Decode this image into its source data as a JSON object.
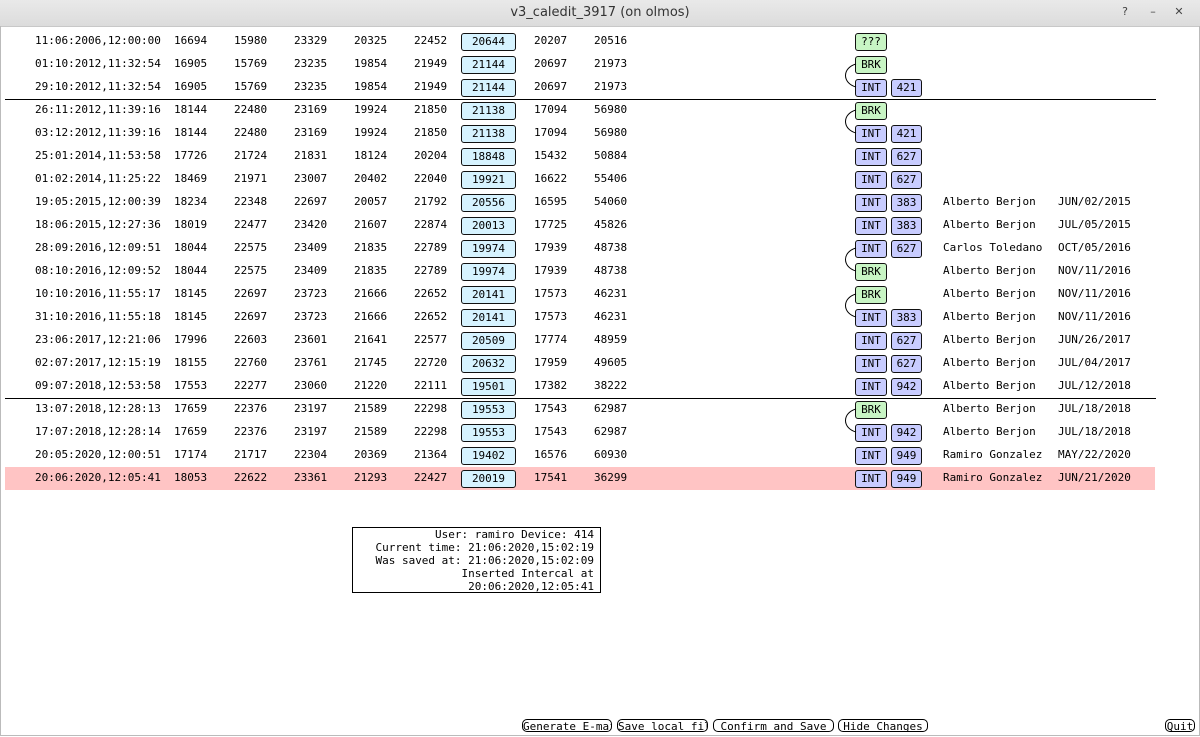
{
  "window": {
    "title": "v3_caledit_3917 (on olmos)",
    "help": "?",
    "minimize": "–",
    "close": "✕"
  },
  "rows": [
    {
      "date": "11:06:2006,12:00:00",
      "c1": "16694",
      "c2": "15980",
      "c3": "23329",
      "c4": "20325",
      "c5": "22452",
      "c6": "20644",
      "c7": "20207",
      "c8": "20516",
      "tag": "???",
      "num": "",
      "user": "",
      "udate": ""
    },
    {
      "date": "01:10:2012,11:32:54",
      "c1": "16905",
      "c2": "15769",
      "c3": "23235",
      "c4": "19854",
      "c5": "21949",
      "c6": "21144",
      "c7": "20697",
      "c8": "21973",
      "tag": "BRK",
      "num": "",
      "user": "",
      "udate": ""
    },
    {
      "date": "29:10:2012,11:32:54",
      "c1": "16905",
      "c2": "15769",
      "c3": "23235",
      "c4": "19854",
      "c5": "21949",
      "c6": "21144",
      "c7": "20697",
      "c8": "21973",
      "tag": "INT",
      "num": "421",
      "user": "",
      "udate": ""
    },
    {
      "date": "26:11:2012,11:39:16",
      "c1": "18144",
      "c2": "22480",
      "c3": "23169",
      "c4": "19924",
      "c5": "21850",
      "c6": "21138",
      "c7": "17094",
      "c8": "56980",
      "tag": "BRK",
      "num": "",
      "user": "",
      "udate": ""
    },
    {
      "date": "03:12:2012,11:39:16",
      "c1": "18144",
      "c2": "22480",
      "c3": "23169",
      "c4": "19924",
      "c5": "21850",
      "c6": "21138",
      "c7": "17094",
      "c8": "56980",
      "tag": "INT",
      "num": "421",
      "user": "",
      "udate": ""
    },
    {
      "date": "25:01:2014,11:53:58",
      "c1": "17726",
      "c2": "21724",
      "c3": "21831",
      "c4": "18124",
      "c5": "20204",
      "c6": "18848",
      "c7": "15432",
      "c8": "50884",
      "tag": "INT",
      "num": "627",
      "user": "",
      "udate": ""
    },
    {
      "date": "01:02:2014,11:25:22",
      "c1": "18469",
      "c2": "21971",
      "c3": "23007",
      "c4": "20402",
      "c5": "22040",
      "c6": "19921",
      "c7": "16622",
      "c8": "55406",
      "tag": "INT",
      "num": "627",
      "user": "",
      "udate": ""
    },
    {
      "date": "19:05:2015,12:00:39",
      "c1": "18234",
      "c2": "22348",
      "c3": "22697",
      "c4": "20057",
      "c5": "21792",
      "c6": "20556",
      "c7": "16595",
      "c8": "54060",
      "tag": "INT",
      "num": "383",
      "user": "Alberto Berjon",
      "udate": "JUN/02/2015"
    },
    {
      "date": "18:06:2015,12:27:36",
      "c1": "18019",
      "c2": "22477",
      "c3": "23420",
      "c4": "21607",
      "c5": "22874",
      "c6": "20013",
      "c7": "17725",
      "c8": "45826",
      "tag": "INT",
      "num": "383",
      "user": "Alberto Berjon",
      "udate": "JUL/05/2015"
    },
    {
      "date": "28:09:2016,12:09:51",
      "c1": "18044",
      "c2": "22575",
      "c3": "23409",
      "c4": "21835",
      "c5": "22789",
      "c6": "19974",
      "c7": "17939",
      "c8": "48738",
      "tag": "INT",
      "num": "627",
      "user": "Carlos Toledano",
      "udate": "OCT/05/2016"
    },
    {
      "date": "08:10:2016,12:09:52",
      "c1": "18044",
      "c2": "22575",
      "c3": "23409",
      "c4": "21835",
      "c5": "22789",
      "c6": "19974",
      "c7": "17939",
      "c8": "48738",
      "tag": "BRK",
      "num": "",
      "user": "Alberto Berjon",
      "udate": "NOV/11/2016"
    },
    {
      "date": "10:10:2016,11:55:17",
      "c1": "18145",
      "c2": "22697",
      "c3": "23723",
      "c4": "21666",
      "c5": "22652",
      "c6": "20141",
      "c7": "17573",
      "c8": "46231",
      "tag": "BRK",
      "num": "",
      "user": "Alberto Berjon",
      "udate": "NOV/11/2016"
    },
    {
      "date": "31:10:2016,11:55:18",
      "c1": "18145",
      "c2": "22697",
      "c3": "23723",
      "c4": "21666",
      "c5": "22652",
      "c6": "20141",
      "c7": "17573",
      "c8": "46231",
      "tag": "INT",
      "num": "383",
      "user": "Alberto Berjon",
      "udate": "NOV/11/2016"
    },
    {
      "date": "23:06:2017,12:21:06",
      "c1": "17996",
      "c2": "22603",
      "c3": "23601",
      "c4": "21641",
      "c5": "22577",
      "c6": "20509",
      "c7": "17774",
      "c8": "48959",
      "tag": "INT",
      "num": "627",
      "user": "Alberto Berjon",
      "udate": "JUN/26/2017"
    },
    {
      "date": "02:07:2017,12:15:19",
      "c1": "18155",
      "c2": "22760",
      "c3": "23761",
      "c4": "21745",
      "c5": "22720",
      "c6": "20632",
      "c7": "17959",
      "c8": "49605",
      "tag": "INT",
      "num": "627",
      "user": "Alberto Berjon",
      "udate": "JUL/04/2017"
    },
    {
      "date": "09:07:2018,12:53:58",
      "c1": "17553",
      "c2": "22277",
      "c3": "23060",
      "c4": "21220",
      "c5": "22111",
      "c6": "19501",
      "c7": "17382",
      "c8": "38222",
      "tag": "INT",
      "num": "942",
      "user": "Alberto Berjon",
      "udate": "JUL/12/2018"
    },
    {
      "date": "13:07:2018,12:28:13",
      "c1": "17659",
      "c2": "22376",
      "c3": "23197",
      "c4": "21589",
      "c5": "22298",
      "c6": "19553",
      "c7": "17543",
      "c8": "62987",
      "tag": "BRK",
      "num": "",
      "user": "Alberto Berjon",
      "udate": "JUL/18/2018"
    },
    {
      "date": "17:07:2018,12:28:14",
      "c1": "17659",
      "c2": "22376",
      "c3": "23197",
      "c4": "21589",
      "c5": "22298",
      "c6": "19553",
      "c7": "17543",
      "c8": "62987",
      "tag": "INT",
      "num": "942",
      "user": "Alberto Berjon",
      "udate": "JUL/18/2018"
    },
    {
      "date": "20:05:2020,12:00:51",
      "c1": "17174",
      "c2": "21717",
      "c3": "22304",
      "c4": "20369",
      "c5": "21364",
      "c6": "19402",
      "c7": "16576",
      "c8": "60930",
      "tag": "INT",
      "num": "949",
      "user": "Ramiro Gonzalez",
      "udate": "MAY/22/2020"
    },
    {
      "date": "20:06:2020,12:05:41",
      "c1": "18053",
      "c2": "22622",
      "c3": "23361",
      "c4": "21293",
      "c5": "22427",
      "c6": "20019",
      "c7": "17541",
      "c8": "36299",
      "tag": "INT",
      "num": "949",
      "user": "Ramiro Gonzalez",
      "udate": "JUN/21/2020"
    }
  ],
  "selected_row": 19,
  "colors": {
    "selected_row": "#ffc4c4",
    "value_box": "#d6f3ff",
    "int_tag": "#c8ccff",
    "brk_tag": "#c8f5c4"
  },
  "info": {
    "line1": "User: ramiro Device: 414",
    "line2": "Current time: 21:06:2020,15:02:19",
    "line3": "Was saved at: 21:06:2020,15:02:09",
    "line4": "Inserted Intercal at 20:06:2020,12:05:41"
  },
  "buttons": {
    "generate": "Generate E-mail",
    "save_local": "Save local file",
    "confirm": "Confirm and Save",
    "hide": "Hide Changes",
    "quit": "Quit"
  }
}
